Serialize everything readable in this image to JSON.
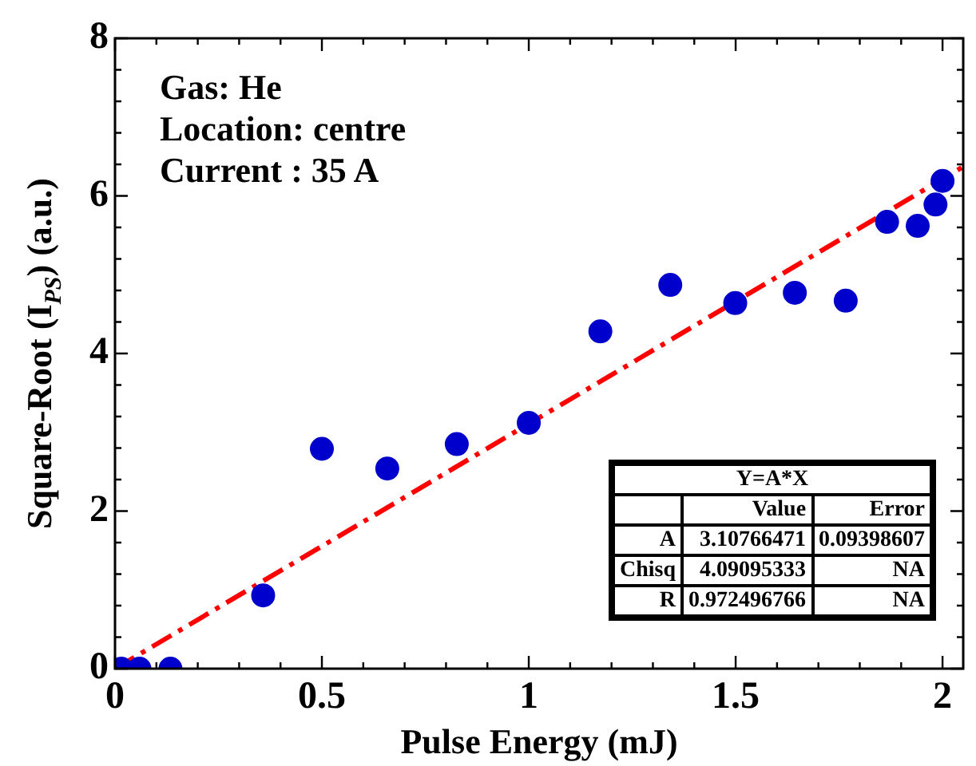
{
  "chart_data": {
    "type": "scatter",
    "xlabel": "Pulse Energy (mJ)",
    "ylabel": "Square-Root (I$_{PS}$) (a.u.)",
    "x": [
      0.015,
      0.059,
      0.134,
      0.358,
      0.5,
      0.658,
      0.826,
      1.0,
      1.173,
      1.342,
      1.499,
      1.643,
      1.766,
      1.866,
      1.94,
      1.983,
      2.0
    ],
    "series": [
      {
        "color": "#0000cc",
        "marker": "circle",
        "values": [
          0,
          0,
          0,
          0.93,
          2.79,
          2.54,
          2.85,
          3.12,
          4.28,
          4.87,
          4.64,
          4.77,
          4.67,
          5.67,
          5.62,
          5.89,
          6.19
        ]
      },
      {
        "type": "line",
        "color": "#ff0000",
        "line_style": "dashdot",
        "marker": "none",
        "x": [
          0,
          2.05
        ],
        "values": [
          0,
          6.37
        ]
      }
    ],
    "xlim": [
      0,
      2.05
    ],
    "ylim": [
      0,
      8
    ],
    "xticks": [
      0,
      {
        "value": 0.1,
        "label": null
      },
      {
        "value": 0.2,
        "label": null
      },
      {
        "value": 0.3,
        "label": null
      },
      {
        "value": 0.4,
        "label": null
      },
      0.5,
      {
        "value": 0.6,
        "label": null
      },
      {
        "value": 0.7,
        "label": null
      },
      {
        "value": 0.8,
        "label": null
      },
      {
        "value": 0.9,
        "label": null
      },
      1,
      {
        "value": 1.1,
        "label": null
      },
      {
        "value": 1.2,
        "label": null
      },
      {
        "value": 1.3,
        "label": null
      },
      {
        "value": 1.4,
        "label": null
      },
      1.5,
      {
        "value": 1.6,
        "label": null
      },
      {
        "value": 1.7,
        "label": null
      },
      {
        "value": 1.8,
        "label": null
      },
      {
        "value": 1.9,
        "label": null
      },
      2
    ],
    "yticks": [
      0,
      {
        "value": 0.4,
        "label": null
      },
      {
        "value": 0.8,
        "label": null
      },
      {
        "value": 1.2,
        "label": null
      },
      {
        "value": 1.6,
        "label": null
      },
      2,
      {
        "value": 2.4,
        "label": null
      },
      {
        "value": 2.8,
        "label": null
      },
      {
        "value": 3.2,
        "label": null
      },
      {
        "value": 3.6,
        "label": null
      },
      4,
      {
        "value": 4.4,
        "label": null
      },
      {
        "value": 4.8,
        "label": null
      },
      {
        "value": 5.2,
        "label": null
      },
      {
        "value": 5.6,
        "label": null
      },
      6,
      {
        "value": 6.4,
        "label": null
      },
      {
        "value": 6.8,
        "label": null
      },
      {
        "value": 7.2,
        "label": null
      },
      {
        "value": 7.6,
        "label": null
      },
      8
    ],
    "annotations": [
      "Gas: He",
      "Location: centre",
      "Current : 35 A",
      "Y=A*X",
      "Value",
      "Error",
      "A",
      "3.10766471",
      "0.09398607",
      "Chisq",
      "4.09095333",
      "NA",
      "R",
      "0.972496766",
      "NA"
    ],
    "legend": false
  }
}
